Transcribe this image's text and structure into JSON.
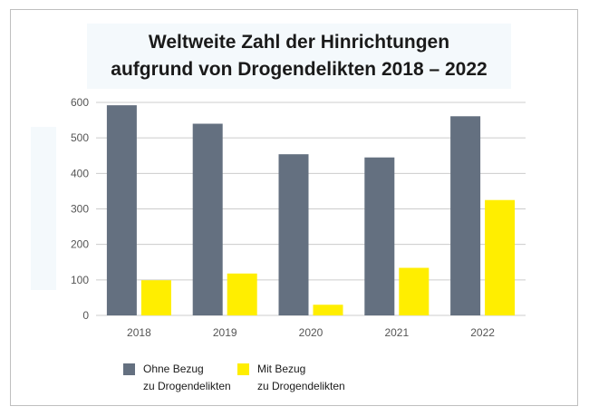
{
  "title_line1": "Weltweite Zahl der Hinrichtungen",
  "title_line2": "aufgrund von Drogendelikten 2018 – 2022",
  "colors": {
    "ohne": "#647080",
    "mit": "#ffee00",
    "grid": "#cccccc"
  },
  "chart_data": {
    "type": "bar",
    "title": "Weltweite Zahl der Hinrichtungen aufgrund von Drogendelikten 2018 – 2022",
    "categories": [
      "2018",
      "2019",
      "2020",
      "2021",
      "2022"
    ],
    "series": [
      {
        "name": "Ohne Bezug zu Drogendelikten",
        "values": [
          592,
          540,
          454,
          445,
          561
        ]
      },
      {
        "name": "Mit Bezug zu Drogendelikten",
        "values": [
          99,
          118,
          30,
          134,
          325
        ]
      }
    ],
    "ylim": [
      0,
      600
    ],
    "yticks": [
      0,
      100,
      200,
      300,
      400,
      500,
      600
    ],
    "grid": true,
    "legend": "bottom"
  },
  "legend": {
    "ohne_line1": "Ohne Bezug",
    "ohne_line2": "zu Drogendelikten",
    "mit_line1": "Mit Bezug",
    "mit_line2": "zu Drogendelikten"
  }
}
